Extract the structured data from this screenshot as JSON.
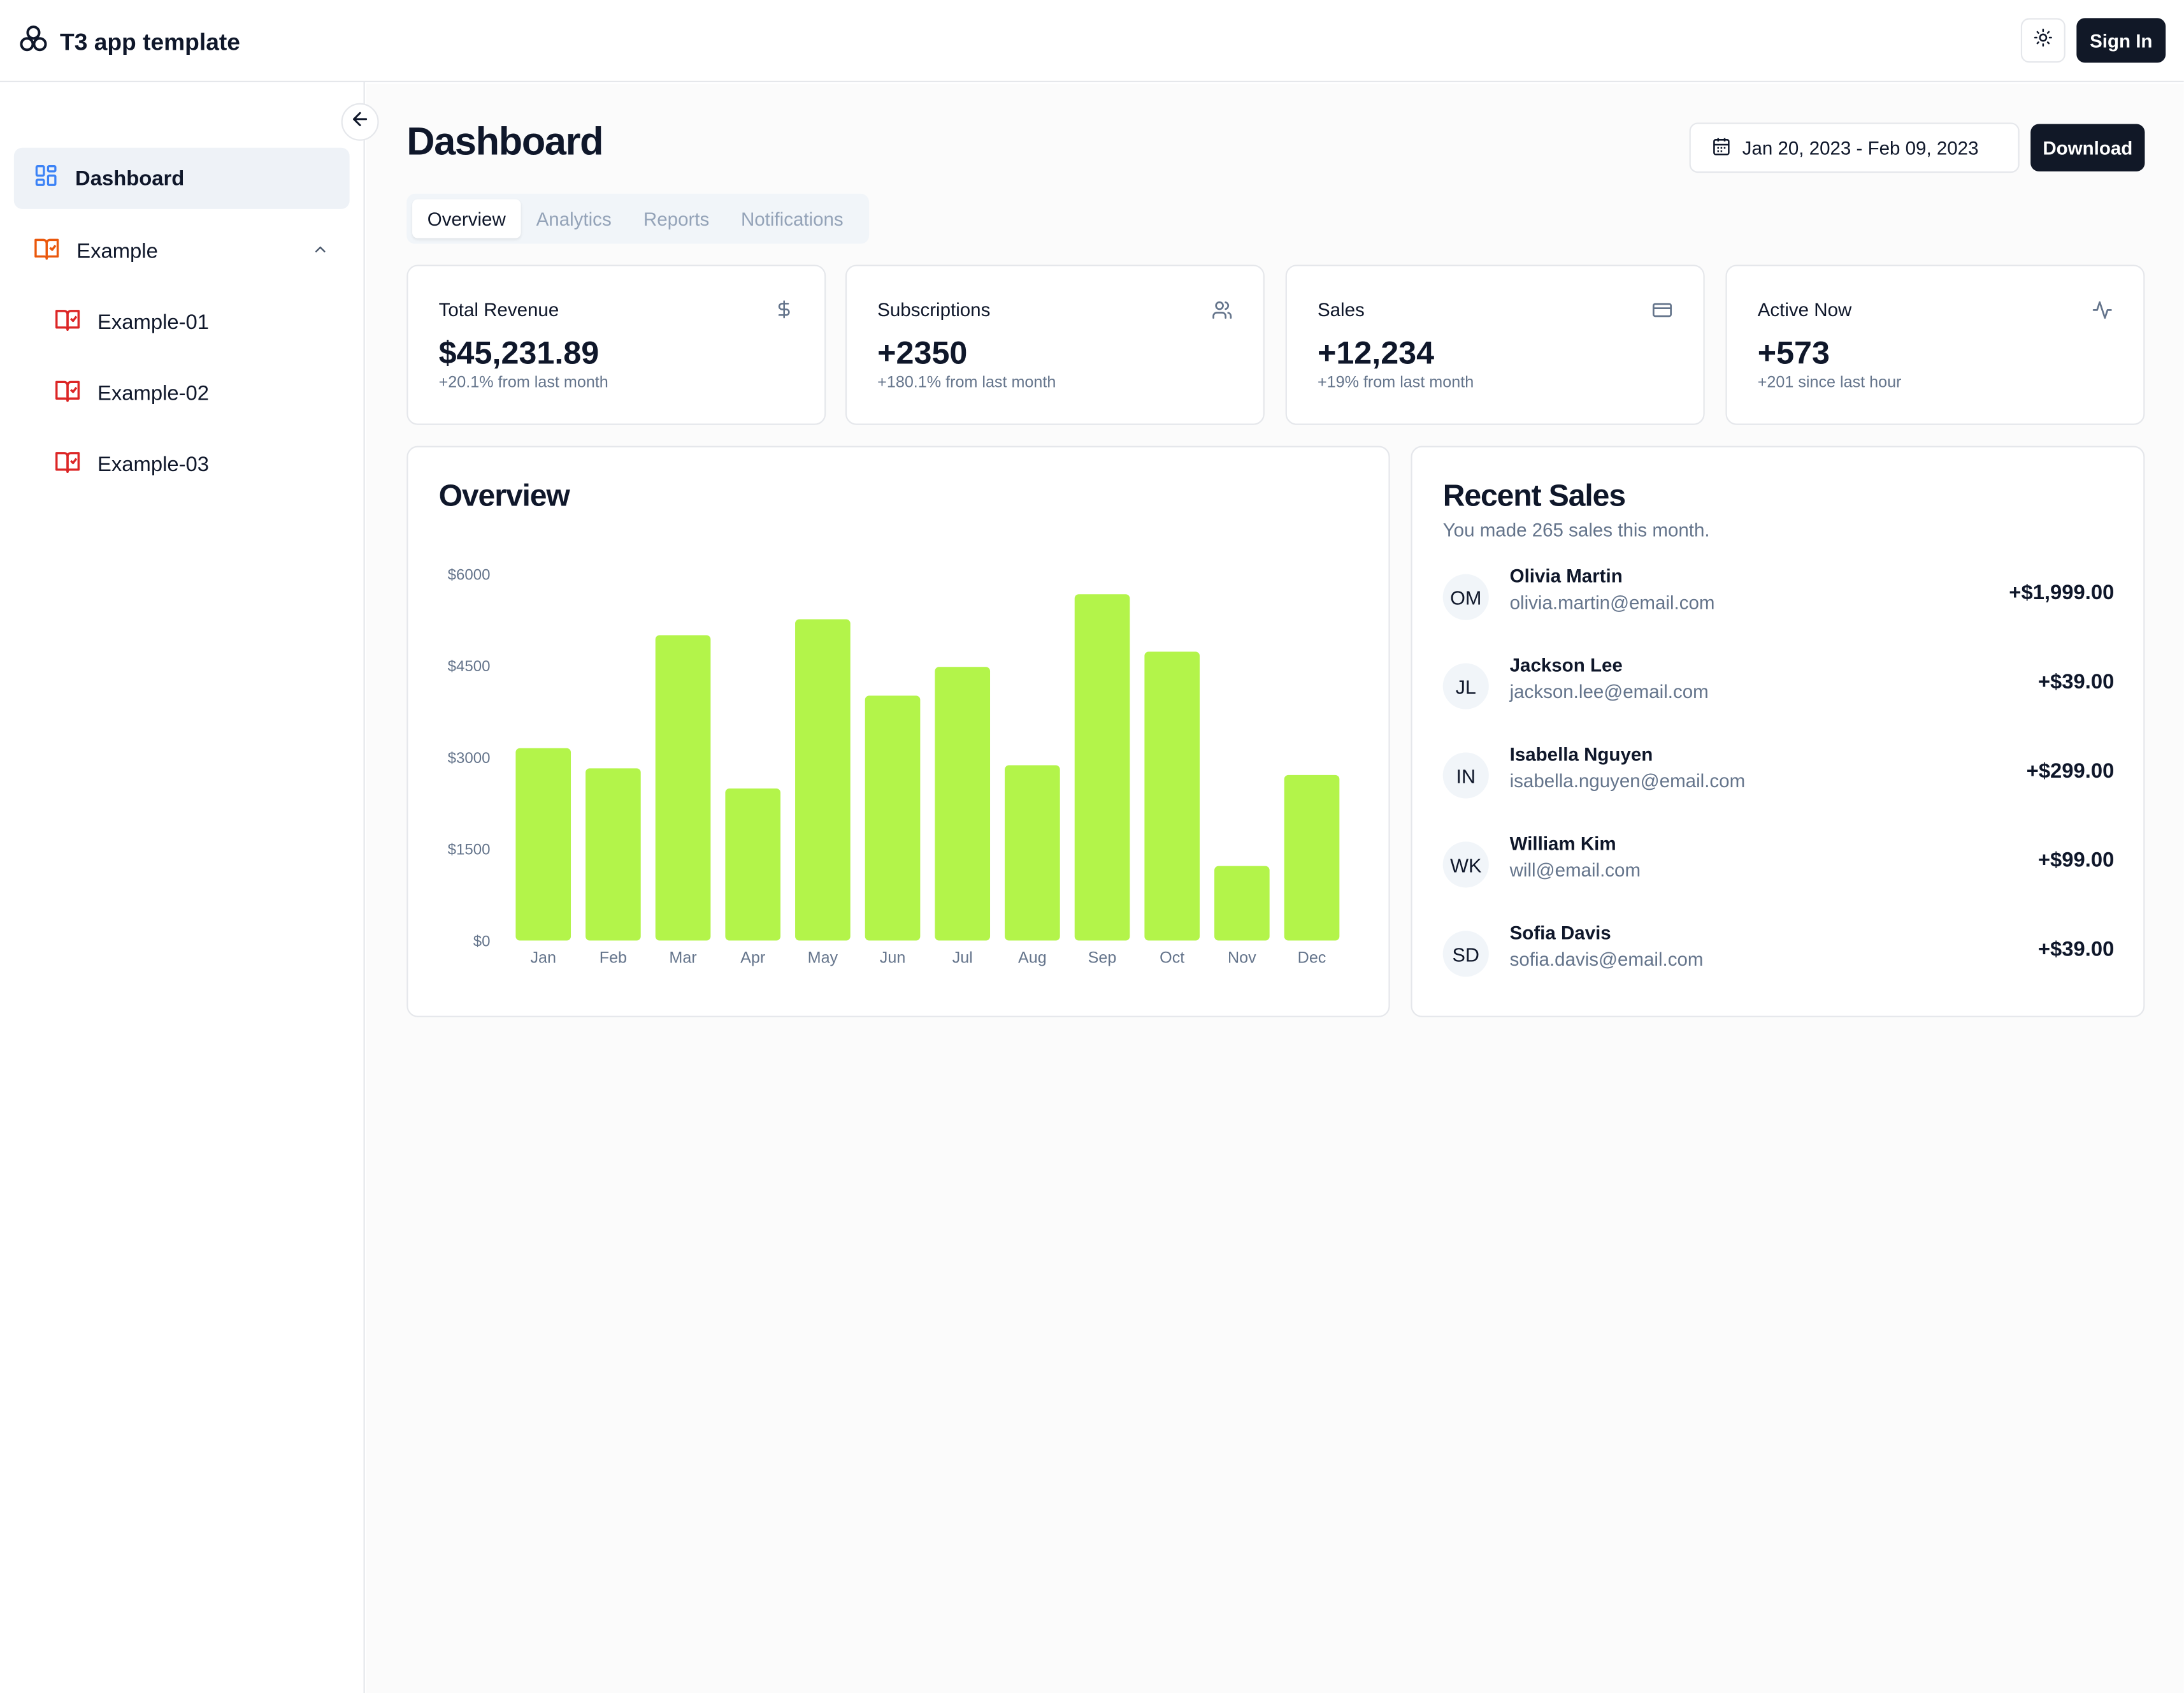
{
  "app": {
    "title": "T3 app template",
    "sign_in_label": "Sign In"
  },
  "sidebar": {
    "items": [
      {
        "label": "Dashboard",
        "icon": "dashboard-grid-icon",
        "active": true
      },
      {
        "label": "Example",
        "icon": "book-icon",
        "expanded": true,
        "children": [
          {
            "label": "Example-01",
            "icon": "book-icon"
          },
          {
            "label": "Example-02",
            "icon": "book-icon"
          },
          {
            "label": "Example-03",
            "icon": "book-icon"
          }
        ]
      }
    ]
  },
  "page": {
    "title": "Dashboard",
    "date_range": "Jan 20, 2023 - Feb 09, 2023",
    "download_label": "Download"
  },
  "tabs": [
    {
      "label": "Overview",
      "active": true
    },
    {
      "label": "Analytics",
      "active": false
    },
    {
      "label": "Reports",
      "active": false
    },
    {
      "label": "Notifications",
      "active": false
    }
  ],
  "stats": [
    {
      "label": "Total Revenue",
      "value": "$45,231.89",
      "sub": "+20.1% from last month",
      "icon": "dollar-icon"
    },
    {
      "label": "Subscriptions",
      "value": "+2350",
      "sub": "+180.1% from last month",
      "icon": "users-icon"
    },
    {
      "label": "Sales",
      "value": "+12,234",
      "sub": "+19% from last month",
      "icon": "credit-card-icon"
    },
    {
      "label": "Active Now",
      "value": "+573",
      "sub": "+201 since last hour",
      "icon": "activity-icon"
    }
  ],
  "overview": {
    "title": "Overview"
  },
  "chart_data": {
    "type": "bar",
    "title": "Overview",
    "xlabel": "",
    "ylabel": "",
    "categories": [
      "Jan",
      "Feb",
      "Mar",
      "Apr",
      "May",
      "Jun",
      "Jul",
      "Aug",
      "Sep",
      "Oct",
      "Nov",
      "Dec"
    ],
    "values": [
      3150,
      2820,
      5000,
      2490,
      5260,
      4010,
      4480,
      2870,
      5670,
      4730,
      1220,
      2710
    ],
    "y_ticks": [
      "$0",
      "$1500",
      "$3000",
      "$4500",
      "$6000"
    ],
    "ylim": [
      0,
      6000
    ],
    "grid": false,
    "bar_color": "#b3f44a"
  },
  "recent_sales": {
    "title": "Recent Sales",
    "subtitle": "You made 265 sales this month.",
    "rows": [
      {
        "initials": "OM",
        "name": "Olivia Martin",
        "email": "olivia.martin@email.com",
        "amount": "+$1,999.00"
      },
      {
        "initials": "JL",
        "name": "Jackson Lee",
        "email": "jackson.lee@email.com",
        "amount": "+$39.00"
      },
      {
        "initials": "IN",
        "name": "Isabella Nguyen",
        "email": "isabella.nguyen@email.com",
        "amount": "+$299.00"
      },
      {
        "initials": "WK",
        "name": "William Kim",
        "email": "will@email.com",
        "amount": "+$99.00"
      },
      {
        "initials": "SD",
        "name": "Sofia Davis",
        "email": "sofia.davis@email.com",
        "amount": "+$39.00"
      }
    ]
  },
  "colors": {
    "primary_dark": "#111827",
    "accent_blue": "#3b82f6",
    "accent_orange": "#ea580c",
    "accent_red": "#dc2626",
    "bar": "#b3f44a"
  }
}
